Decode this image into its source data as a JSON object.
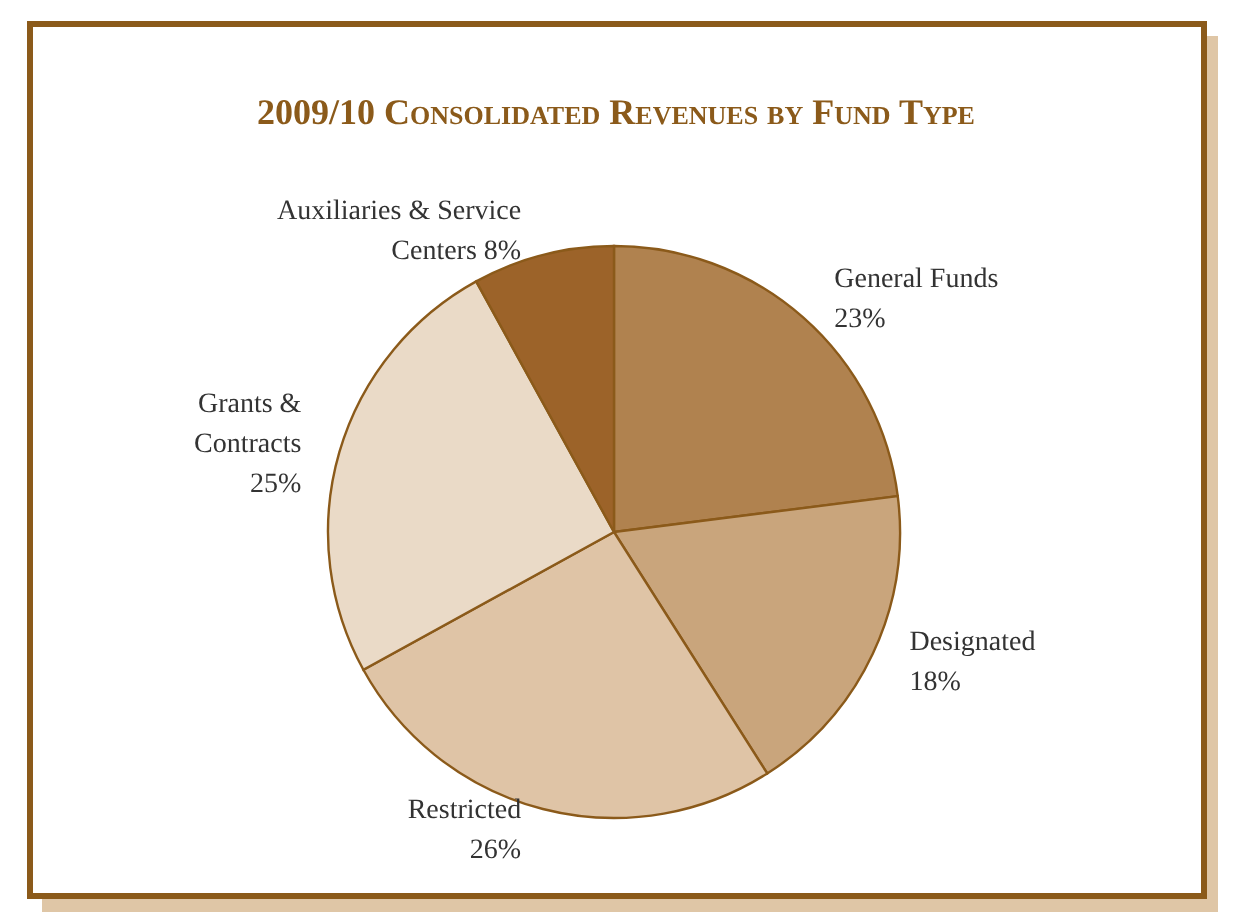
{
  "chart_data": {
    "type": "pie",
    "title": "2009/10 Consolidated Revenues by Fund Type",
    "categories": [
      "General Funds",
      "Designated",
      "Restricted",
      "Grants &\nContracts",
      "Auxiliaries & Service\nCenters 8%"
    ],
    "values": [
      23,
      18,
      26,
      25,
      8
    ],
    "value_labels": [
      "23%",
      "18%",
      "26%",
      "25%",
      null
    ],
    "colors": [
      "#b0824f",
      "#c9a57c",
      "#dfc4a6",
      "#eadac7",
      "#9c6329"
    ]
  }
}
